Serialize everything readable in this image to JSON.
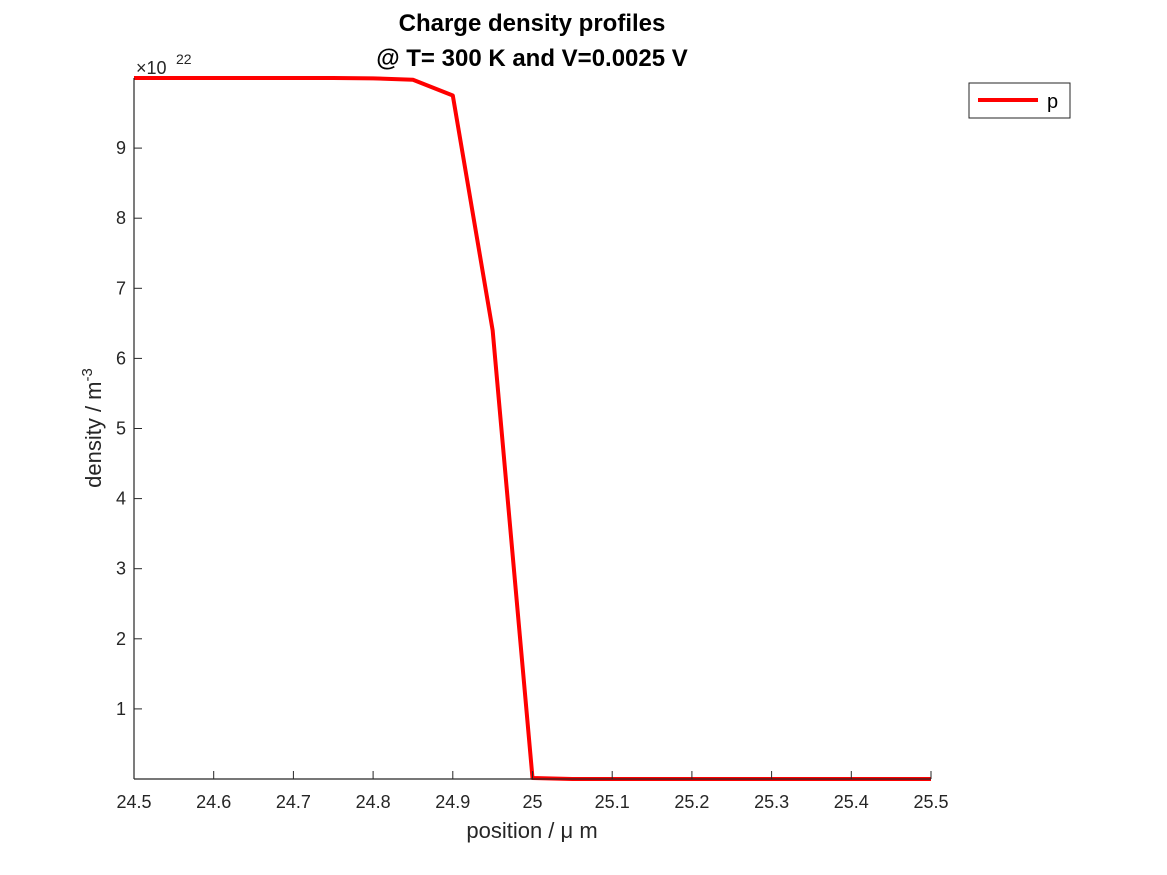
{
  "chart_data": {
    "type": "line",
    "title_lines": [
      "Charge density profiles",
      "@ T= 300 K and V=0.0025 V"
    ],
    "xlabel": "position / μ m",
    "ylabel_main": "density / m",
    "ylabel_sup": "-3",
    "y_exponent_prefix": "×10",
    "y_exponent_sup": "22",
    "xlim": [
      24.5,
      25.5
    ],
    "ylim": [
      0,
      1.0
    ],
    "x_ticks": [
      24.5,
      24.6,
      24.7,
      24.8,
      24.9,
      25,
      25.1,
      25.2,
      25.3,
      25.4,
      25.5
    ],
    "x_tick_labels": [
      "24.5",
      "24.6",
      "24.7",
      "24.8",
      "24.9",
      "25",
      "25.1",
      "25.2",
      "25.3",
      "25.4",
      "25.5"
    ],
    "y_ticks": [
      0.1,
      0.2,
      0.3,
      0.4,
      0.5,
      0.6,
      0.7,
      0.8,
      0.9
    ],
    "y_tick_labels": [
      "1",
      "2",
      "3",
      "4",
      "5",
      "6",
      "7",
      "8",
      "9"
    ],
    "grid": false,
    "legend_position": "top-right outside",
    "series": [
      {
        "name": "p",
        "color": "#ff0000",
        "x": [
          24.5,
          24.55,
          24.6,
          24.65,
          24.7,
          24.75,
          24.8,
          24.85,
          24.9,
          24.95,
          25.0,
          25.05,
          25.1,
          25.15,
          25.2,
          25.25,
          25.3,
          25.35,
          25.4,
          25.45,
          25.5
        ],
        "y": [
          1.0,
          1.0,
          1.0,
          1.0,
          1.0,
          1.0,
          0.9995,
          0.9975,
          0.975,
          0.64,
          0.0015,
          0.0,
          0.0,
          0.0,
          0.0,
          0.0,
          0.0,
          0.0,
          0.0,
          0.0,
          0.0
        ]
      }
    ]
  }
}
